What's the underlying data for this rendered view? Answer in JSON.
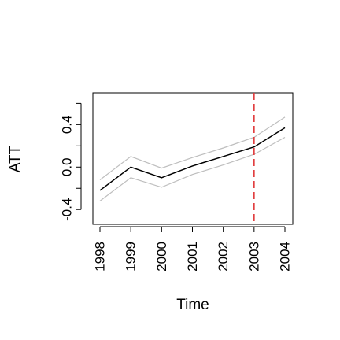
{
  "chart_data": {
    "type": "line",
    "xlabel": "Time",
    "ylabel": "ATT",
    "x": [
      1998,
      1999,
      2000,
      2001,
      2002,
      2003,
      2004
    ],
    "x_tick_labels": [
      "1998",
      "1999",
      "2000",
      "2001",
      "2002",
      "2003",
      "2004"
    ],
    "y_tick_labels": [
      "-0.4",
      "0.0",
      "0.4"
    ],
    "y_ticks_major": [
      -0.4,
      0.0,
      0.4
    ],
    "y_ticks_all": [
      -0.4,
      -0.2,
      0.0,
      0.2,
      0.4,
      0.6
    ],
    "xlim": [
      1998,
      2004
    ],
    "ylim": [
      -0.48,
      0.64
    ],
    "series": [
      {
        "role": "estimate",
        "values": [
          -0.22,
          0.0,
          -0.1,
          0.01,
          0.1,
          0.19,
          0.37
        ],
        "color": "#000000"
      },
      {
        "role": "upper",
        "values": [
          -0.12,
          0.1,
          -0.01,
          0.09,
          0.18,
          0.28,
          0.47
        ],
        "color": "#bebebe"
      },
      {
        "role": "lower",
        "values": [
          -0.32,
          -0.1,
          -0.19,
          -0.07,
          0.02,
          0.12,
          0.28
        ],
        "color": "#bebebe"
      }
    ],
    "vline": {
      "x": 2003,
      "color": "#e0393b",
      "style": "dashed"
    },
    "grid": false,
    "legend": "none"
  }
}
